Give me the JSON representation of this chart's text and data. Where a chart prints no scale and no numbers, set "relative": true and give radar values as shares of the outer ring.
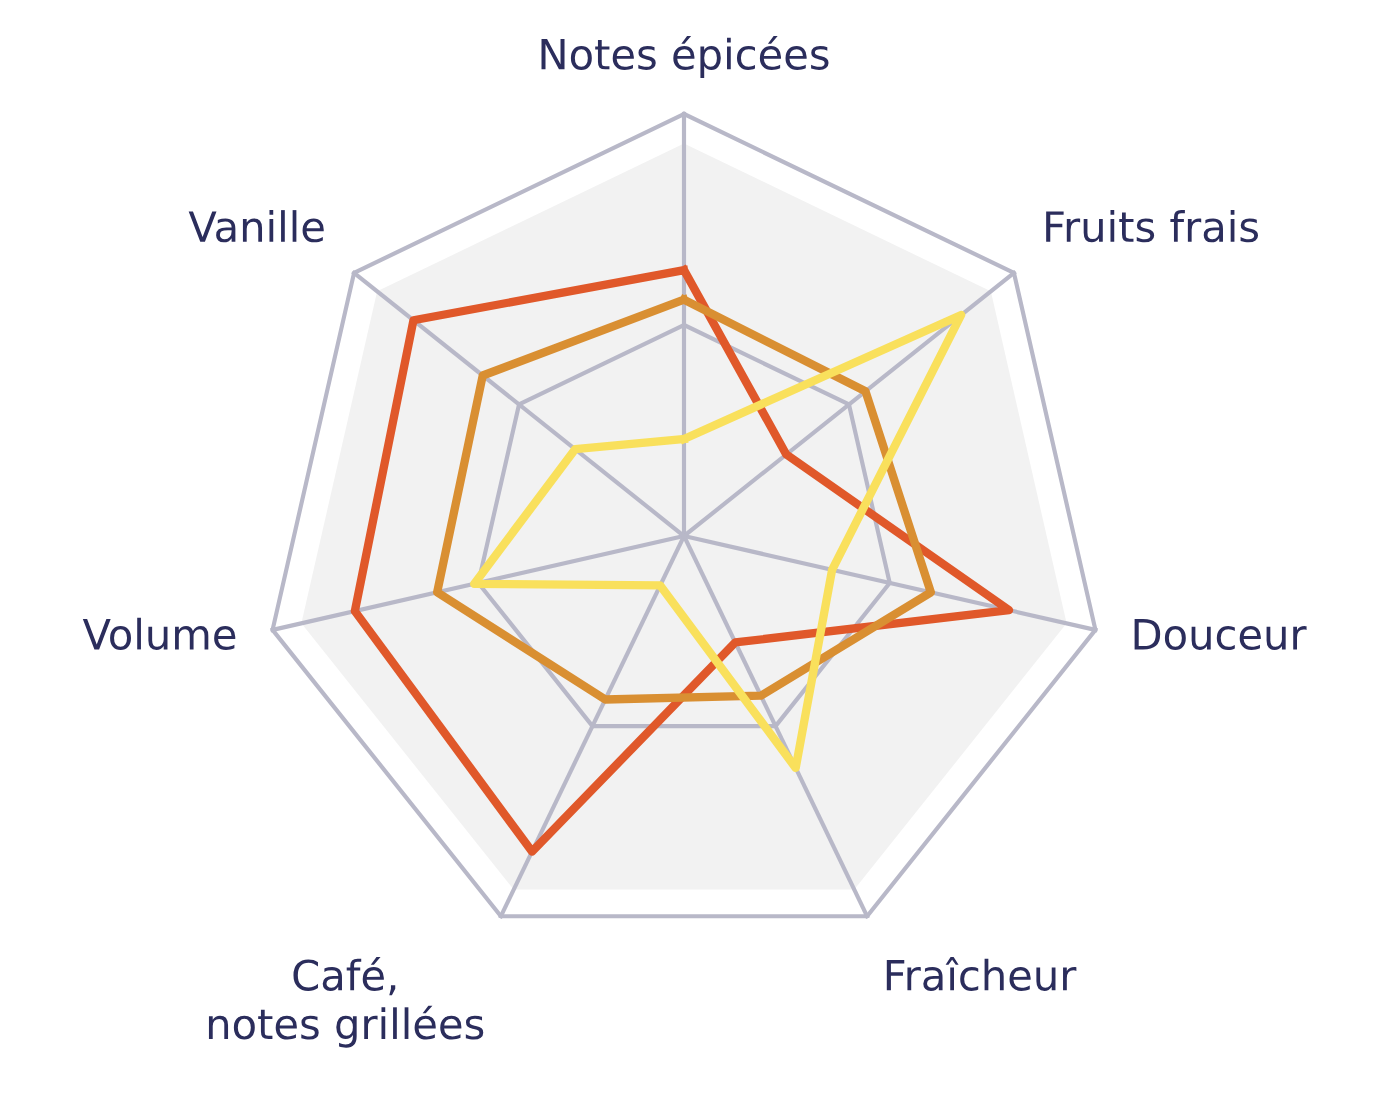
{
  "chart_data": {
    "type": "radar",
    "relative": true,
    "grid": true,
    "legend": false,
    "categories": [
      "Notes épicées",
      "Fruits frais",
      "Douceur",
      "Fraîcheur",
      "Café,\nnotes grillées",
      "Volume",
      "Vanille"
    ],
    "series": [
      {
        "color": "#e0582a",
        "values": [
          0.63,
          0.31,
          0.79,
          0.28,
          0.83,
          0.8,
          0.82
        ]
      },
      {
        "color": "#d98f32",
        "values": [
          0.56,
          0.55,
          0.6,
          0.42,
          0.43,
          0.6,
          0.61
        ]
      },
      {
        "color": "#f9e05c",
        "values": [
          0.23,
          0.84,
          0.36,
          0.61,
          0.13,
          0.51,
          0.33
        ]
      }
    ]
  }
}
